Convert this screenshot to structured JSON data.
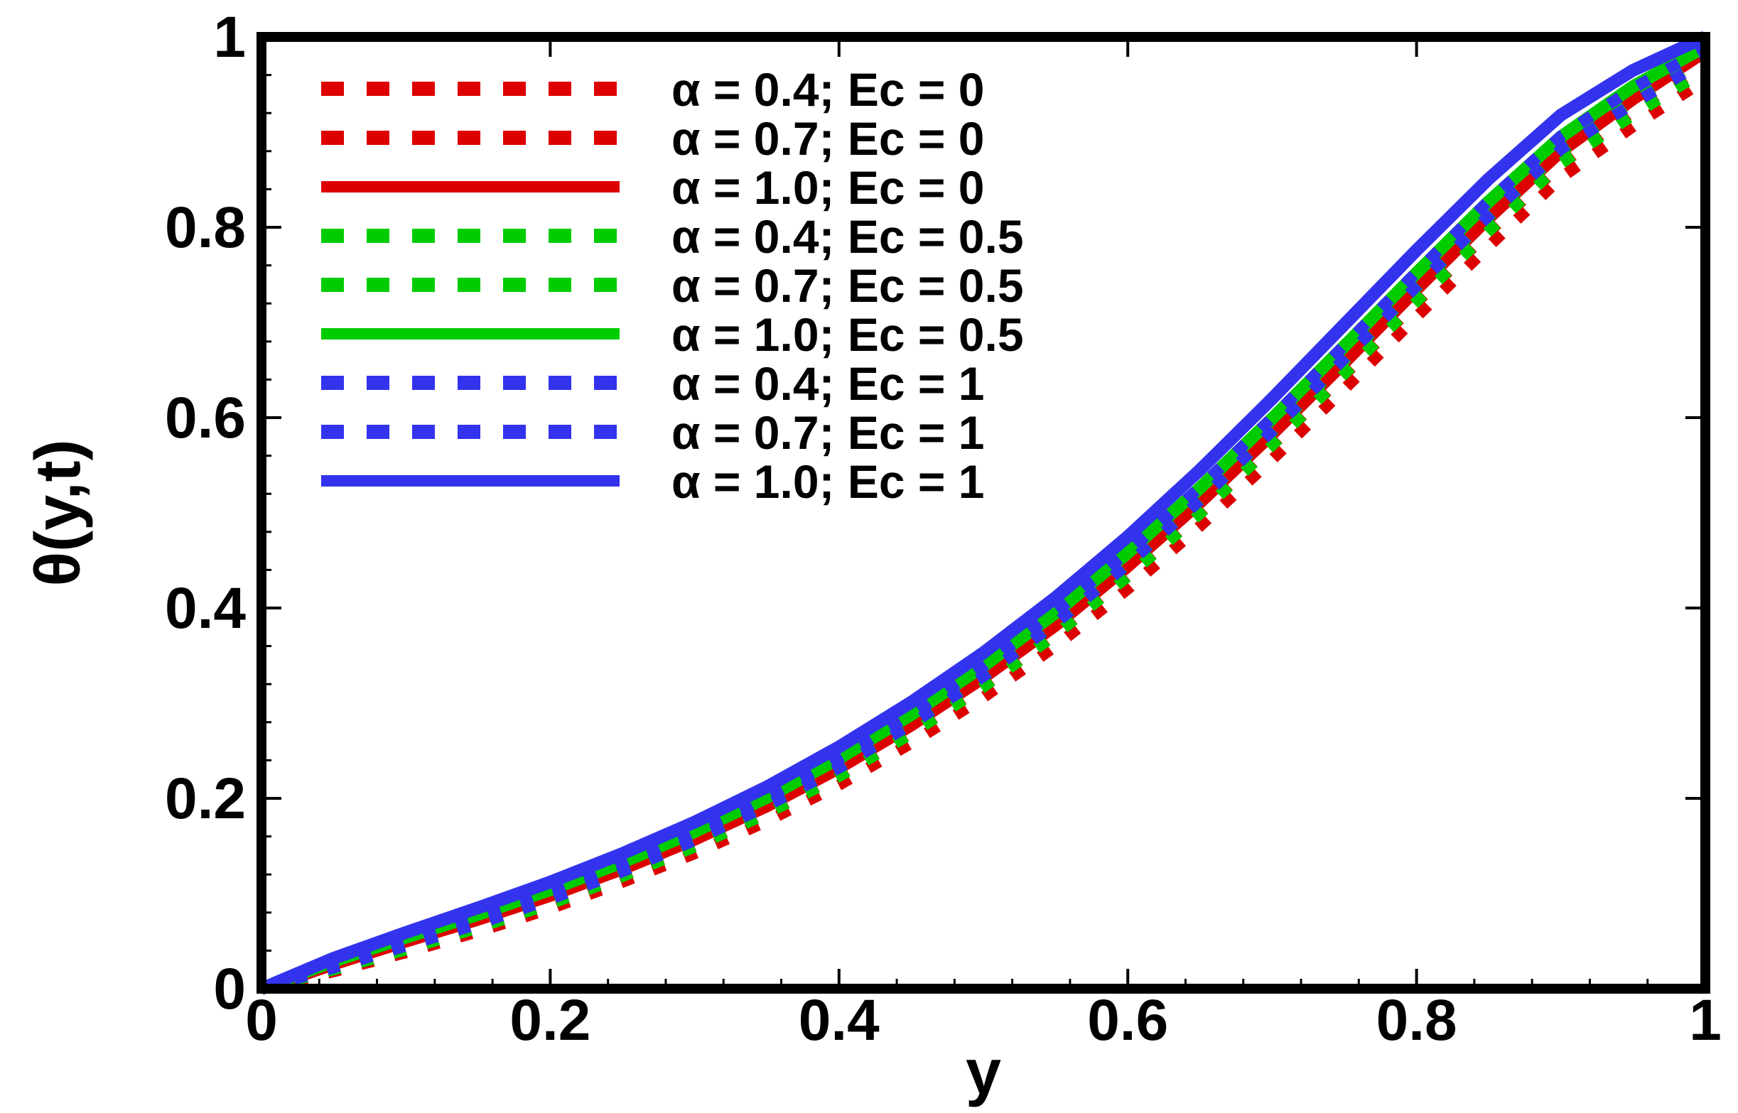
{
  "chart_data": {
    "type": "line",
    "title": "",
    "xlabel": "y",
    "ylabel": "θ(y,t)",
    "xlim": [
      0,
      1
    ],
    "ylim": [
      0,
      1
    ],
    "xticks": [
      "0",
      "0.2",
      "0.4",
      "0.6",
      "0.8",
      "1"
    ],
    "yticks": [
      "0",
      "0.2",
      "0.4",
      "0.6",
      "0.8",
      "1"
    ],
    "grid": false,
    "legend_position": "top-left",
    "x": [
      0,
      0.05,
      0.1,
      0.15,
      0.2,
      0.25,
      0.3,
      0.35,
      0.4,
      0.45,
      0.5,
      0.55,
      0.6,
      0.65,
      0.7,
      0.75,
      0.8,
      0.85,
      0.9,
      0.95,
      1.0
    ],
    "series": [
      {
        "name": "α = 0.4; Ec = 0",
        "color": "#dd0000",
        "style": "dashed",
        "values": [
          0,
          0.018,
          0.038,
          0.06,
          0.084,
          0.112,
          0.142,
          0.176,
          0.214,
          0.258,
          0.306,
          0.36,
          0.42,
          0.486,
          0.556,
          0.63,
          0.706,
          0.78,
          0.852,
          0.906,
          0.955
        ]
      },
      {
        "name": "α = 0.7; Ec = 0",
        "color": "#dd0000",
        "style": "dashed",
        "values": [
          0,
          0.022,
          0.044,
          0.066,
          0.091,
          0.119,
          0.15,
          0.185,
          0.224,
          0.269,
          0.318,
          0.373,
          0.434,
          0.5,
          0.571,
          0.645,
          0.721,
          0.795,
          0.866,
          0.922,
          0.97
        ]
      },
      {
        "name": "α = 1.0; Ec = 0",
        "color": "#dd0000",
        "style": "solid",
        "values": [
          0,
          0.026,
          0.05,
          0.073,
          0.098,
          0.126,
          0.157,
          0.192,
          0.232,
          0.277,
          0.327,
          0.382,
          0.444,
          0.511,
          0.583,
          0.658,
          0.735,
          0.81,
          0.88,
          0.935,
          0.985
        ]
      },
      {
        "name": "α = 0.4; Ec = 0.5",
        "color": "#00cc00",
        "style": "dashed",
        "values": [
          0,
          0.02,
          0.041,
          0.064,
          0.089,
          0.118,
          0.149,
          0.184,
          0.223,
          0.268,
          0.317,
          0.372,
          0.433,
          0.499,
          0.571,
          0.646,
          0.722,
          0.796,
          0.867,
          0.918,
          0.965
        ]
      },
      {
        "name": "α = 0.7; Ec = 0.5",
        "color": "#00cc00",
        "style": "dashed",
        "values": [
          0,
          0.024,
          0.047,
          0.07,
          0.096,
          0.125,
          0.157,
          0.193,
          0.233,
          0.278,
          0.328,
          0.384,
          0.446,
          0.513,
          0.585,
          0.66,
          0.737,
          0.811,
          0.88,
          0.933,
          0.978
        ]
      },
      {
        "name": "α = 1.0; Ec = 0.5",
        "color": "#00cc00",
        "style": "solid",
        "values": [
          0,
          0.029,
          0.054,
          0.078,
          0.104,
          0.133,
          0.165,
          0.201,
          0.242,
          0.288,
          0.339,
          0.395,
          0.458,
          0.526,
          0.599,
          0.675,
          0.752,
          0.827,
          0.895,
          0.948,
          0.99
        ]
      },
      {
        "name": "α = 0.4; Ec = 1",
        "color": "#3333ee",
        "style": "dashed",
        "values": [
          0,
          0.022,
          0.045,
          0.068,
          0.094,
          0.123,
          0.156,
          0.192,
          0.232,
          0.278,
          0.328,
          0.384,
          0.446,
          0.513,
          0.586,
          0.662,
          0.738,
          0.812,
          0.882,
          0.93,
          0.975
        ]
      },
      {
        "name": "α = 0.7; Ec = 1",
        "color": "#3333ee",
        "style": "dashed",
        "values": [
          0,
          0.027,
          0.051,
          0.075,
          0.101,
          0.131,
          0.164,
          0.201,
          0.242,
          0.288,
          0.339,
          0.396,
          0.459,
          0.527,
          0.6,
          0.676,
          0.753,
          0.828,
          0.896,
          0.946,
          0.988
        ]
      },
      {
        "name": "α = 1.0; Ec = 1",
        "color": "#3333ee",
        "style": "solid",
        "values": [
          0,
          0.032,
          0.059,
          0.085,
          0.112,
          0.142,
          0.175,
          0.212,
          0.254,
          0.301,
          0.353,
          0.411,
          0.475,
          0.545,
          0.62,
          0.698,
          0.776,
          0.851,
          0.918,
          0.965,
          1.0
        ]
      }
    ]
  }
}
